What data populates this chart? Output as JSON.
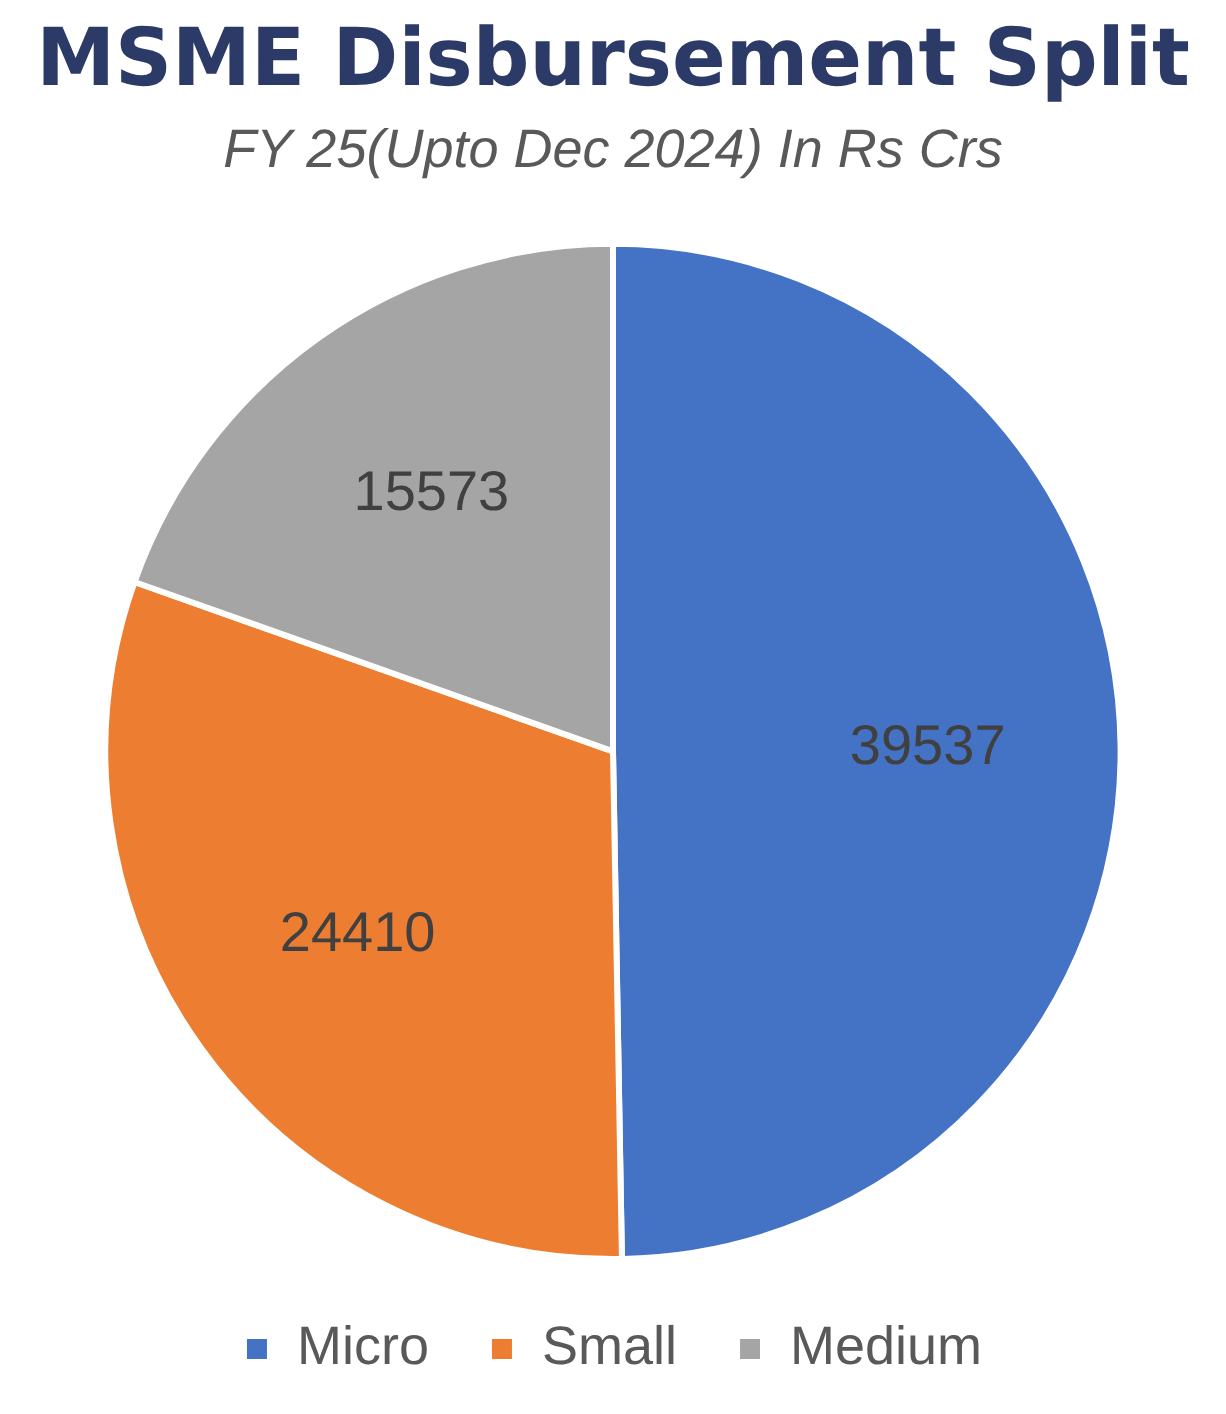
{
  "chart_data": {
    "type": "pie",
    "title": "MSME Disbursement Split",
    "subtitle": "FY 25(Upto Dec 2024) In Rs Crs",
    "categories": [
      "Micro",
      "Small",
      "Medium"
    ],
    "values": [
      39537,
      24410,
      15573
    ],
    "colors": [
      "#4472c4",
      "#ed7d31",
      "#a5a5a5"
    ],
    "data_labels": true,
    "legend": "bottom"
  }
}
